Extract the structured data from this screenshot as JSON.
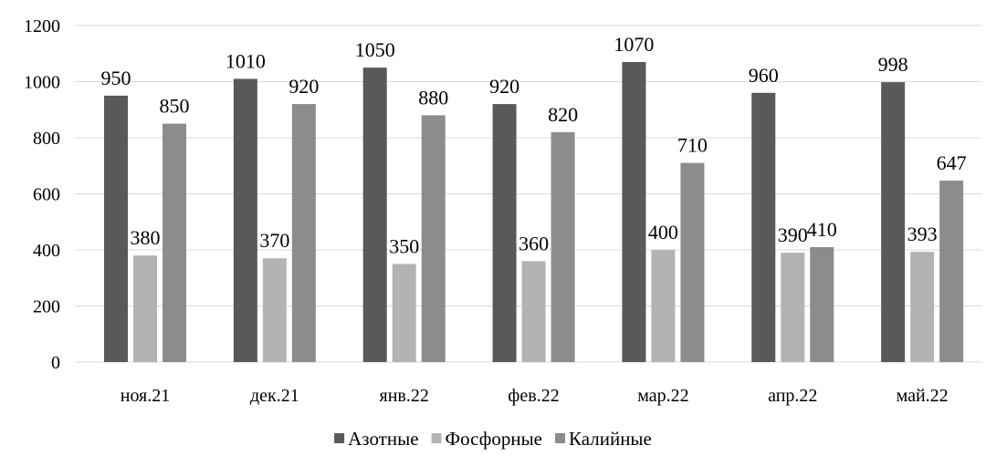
{
  "chart_data": {
    "type": "bar",
    "title": "",
    "xlabel": "",
    "ylabel": "",
    "categories": [
      "ноя.21",
      "дек.21",
      "янв.22",
      "фев.22",
      "мар.22",
      "апр.22",
      "май.22"
    ],
    "series": [
      {
        "name": "Азотные",
        "color": "#595959",
        "values": [
          950,
          1010,
          1050,
          920,
          1070,
          960,
          998
        ]
      },
      {
        "name": "Фосфорные",
        "color": "#b3b3b3",
        "values": [
          380,
          370,
          350,
          360,
          400,
          390,
          393
        ]
      },
      {
        "name": "Калийные",
        "color": "#8c8c8c",
        "values": [
          850,
          920,
          880,
          820,
          710,
          410,
          647
        ]
      }
    ],
    "ylim": [
      0,
      1200
    ],
    "yticks": [
      0,
      200,
      400,
      600,
      800,
      1000,
      1200
    ],
    "grid": true,
    "legend_position": "bottom-center",
    "data_labels": true
  }
}
